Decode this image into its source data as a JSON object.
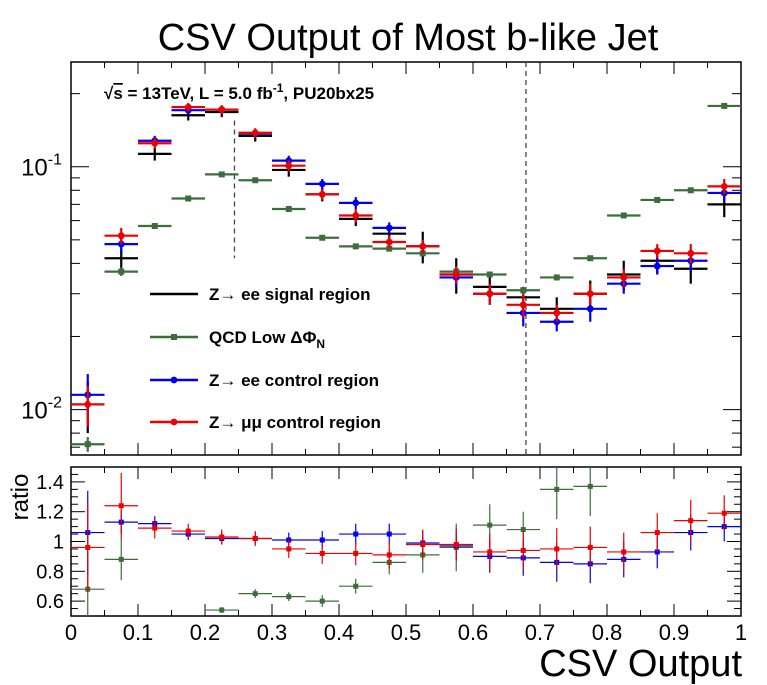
{
  "chart_data": [
    {
      "type": "scatter",
      "panel": "main",
      "title": "CSV Output of Most b-like Jet",
      "annotation": {
        "sqrt": "√",
        "s": "s",
        "text1": " = 13TeV, L = 5.0 fb",
        "sup": "-1",
        "text2": ", PU20bx25"
      },
      "xlim": [
        0,
        1
      ],
      "ylim": [
        0.0065,
        0.27
      ],
      "log_y": true,
      "grid": false,
      "legend_position": "center-left",
      "y_tick_labels": [
        {
          "value": 0.1,
          "base": "10",
          "exp": "-1"
        },
        {
          "value": 0.01,
          "base": "10",
          "exp": "-2"
        }
      ],
      "cut_lines_x": [
        0.244,
        0.679
      ],
      "x_bins": [
        0.025,
        0.075,
        0.125,
        0.175,
        0.225,
        0.275,
        0.325,
        0.375,
        0.425,
        0.475,
        0.525,
        0.575,
        0.625,
        0.675,
        0.725,
        0.775,
        0.825,
        0.875,
        0.925,
        0.975
      ],
      "series": [
        {
          "key": "signal",
          "label_parts": [
            {
              "t": "Z→ ee signal region"
            }
          ],
          "color": "#000000",
          "marker": false,
          "values": [
            0.0105,
            0.042,
            0.113,
            0.163,
            0.168,
            0.134,
            0.097,
            0.077,
            0.061,
            0.053,
            0.047,
            0.036,
            0.032,
            0.029,
            0.026,
            0.03,
            0.036,
            0.041,
            0.038,
            0.07
          ],
          "errors": [
            0.0025,
            0.004,
            0.007,
            0.008,
            0.008,
            0.007,
            0.006,
            0.005,
            0.004,
            0.004,
            0.007,
            0.006,
            0.003,
            0.003,
            0.003,
            0.004,
            0.005,
            0.005,
            0.005,
            0.008
          ]
        },
        {
          "key": "qcd",
          "label_parts": [
            {
              "t": "QCD Low "
            },
            {
              "t": "ΔΦ"
            },
            {
              "sub": "N"
            }
          ],
          "color": "#3c6e3c",
          "marker": true,
          "values": [
            0.0072,
            0.037,
            0.057,
            0.074,
            0.093,
            0.088,
            0.067,
            0.051,
            0.047,
            0.046,
            0.044,
            0.037,
            0.036,
            0.031,
            0.035,
            0.042,
            0.063,
            0.073,
            0.08,
            0.178
          ],
          "errors": [
            0.0005,
            0.0015,
            0.0015,
            0.0015,
            0.0015,
            0.0015,
            0.0012,
            0.001,
            0.001,
            0.001,
            0.001,
            0.001,
            0.001,
            0.001,
            0.001,
            0.001,
            0.0012,
            0.0012,
            0.0015,
            0.003
          ]
        },
        {
          "key": "ee_cr",
          "label_parts": [
            {
              "t": "Z→ ee control region"
            }
          ],
          "color": "#0000ee",
          "marker": true,
          "values": [
            0.0115,
            0.048,
            0.128,
            0.171,
            0.172,
            0.137,
            0.106,
            0.085,
            0.071,
            0.056,
            0.047,
            0.035,
            0.03,
            0.025,
            0.023,
            0.026,
            0.033,
            0.039,
            0.041,
            0.078
          ],
          "errors": [
            0.0025,
            0.004,
            0.006,
            0.007,
            0.007,
            0.006,
            0.005,
            0.004,
            0.004,
            0.003,
            0.003,
            0.003,
            0.003,
            0.003,
            0.002,
            0.003,
            0.003,
            0.003,
            0.004,
            0.006
          ]
        },
        {
          "key": "mumu_cr",
          "label_parts": [
            {
              "t": "Z→ "
            },
            {
              "t": "μμ"
            },
            {
              "t": " control region"
            }
          ],
          "color": "#ee0000",
          "marker": true,
          "values": [
            0.0105,
            0.052,
            0.125,
            0.176,
            0.172,
            0.138,
            0.101,
            0.077,
            0.063,
            0.049,
            0.047,
            0.036,
            0.03,
            0.027,
            0.025,
            0.03,
            0.035,
            0.045,
            0.044,
            0.083
          ],
          "errors": [
            0.002,
            0.004,
            0.006,
            0.007,
            0.007,
            0.006,
            0.005,
            0.004,
            0.004,
            0.003,
            0.003,
            0.003,
            0.003,
            0.003,
            0.002,
            0.003,
            0.003,
            0.003,
            0.004,
            0.006
          ]
        }
      ]
    },
    {
      "type": "scatter",
      "panel": "ratio",
      "xlabel": "CSV Output",
      "ylabel": "ratio",
      "xlim": [
        0,
        1
      ],
      "ylim": [
        0.5,
        1.5
      ],
      "grid": false,
      "x_ticks": [
        0,
        0.1,
        0.2,
        0.3,
        0.4,
        0.5,
        0.6,
        0.7,
        0.8,
        0.9,
        1
      ],
      "x_tick_labels": [
        "0",
        "0.1",
        "0.2",
        "0.3",
        "0.4",
        "0.5",
        "0.6",
        "0.7",
        "0.8",
        "0.9",
        "1"
      ],
      "y_ticks": [
        0.6,
        0.8,
        1.0,
        1.2,
        1.4
      ],
      "y_tick_labels": [
        "0.6",
        "0.8",
        "1",
        "1.2",
        "1.4"
      ],
      "x_bins": [
        0.025,
        0.075,
        0.125,
        0.175,
        0.225,
        0.275,
        0.325,
        0.375,
        0.425,
        0.475,
        0.525,
        0.575,
        0.625,
        0.675,
        0.725,
        0.775,
        0.825,
        0.875,
        0.925,
        0.975
      ],
      "series": [
        {
          "key": "qcd_ratio",
          "color": "#3c6e3c",
          "values": [
            0.68,
            0.88,
            null,
            null,
            0.54,
            0.65,
            0.63,
            0.6,
            0.7,
            0.86,
            0.91,
            0.96,
            1.11,
            1.08,
            1.35,
            1.37,
            null,
            null,
            null,
            null
          ],
          "errors": [
            0.2,
            0.14,
            null,
            null,
            0.02,
            0.03,
            0.03,
            0.04,
            0.05,
            0.08,
            0.12,
            0.16,
            0.14,
            0.12,
            0.2,
            0.2,
            null,
            null,
            null,
            null
          ]
        },
        {
          "key": "ee_ratio",
          "color": "#0000ee",
          "values": [
            1.06,
            1.13,
            1.12,
            1.05,
            1.02,
            1.02,
            1.01,
            1.01,
            1.05,
            1.05,
            0.99,
            0.97,
            0.9,
            0.89,
            0.86,
            0.85,
            0.88,
            0.93,
            1.06,
            1.1
          ],
          "errors": [
            0.28,
            0.08,
            0.05,
            0.04,
            0.04,
            0.04,
            0.05,
            0.06,
            0.07,
            0.07,
            0.08,
            0.09,
            0.11,
            0.12,
            0.13,
            0.13,
            0.12,
            0.11,
            0.12,
            0.1
          ]
        },
        {
          "key": "mumu_ratio",
          "color": "#ee0000",
          "values": [
            0.96,
            1.24,
            1.09,
            1.07,
            1.03,
            1.02,
            0.95,
            0.92,
            0.92,
            0.91,
            0.98,
            0.98,
            0.93,
            0.94,
            0.95,
            0.96,
            0.93,
            1.06,
            1.14,
            1.19
          ],
          "errors": [
            0.3,
            0.22,
            0.07,
            0.05,
            0.05,
            0.05,
            0.06,
            0.07,
            0.08,
            0.09,
            0.1,
            0.11,
            0.12,
            0.13,
            0.14,
            0.14,
            0.13,
            0.13,
            0.14,
            0.12
          ]
        }
      ]
    }
  ]
}
